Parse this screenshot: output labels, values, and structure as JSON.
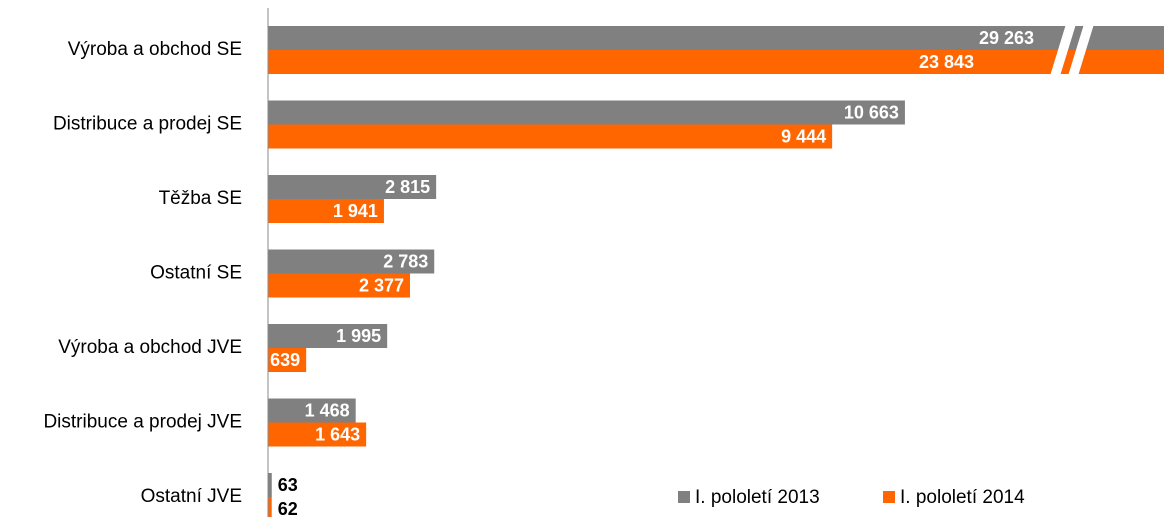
{
  "chart_data": {
    "type": "barh",
    "categories": [
      "Výroba a obchod SE",
      "Distribuce a prodej SE",
      "Těžba SE",
      "Ostatní SE",
      "Výroba a obchod JVE",
      "Distribuce a prodej JVE",
      "Ostatní JVE"
    ],
    "series": [
      {
        "name": "I. pololetí 2013",
        "color": "#808080",
        "values": [
          29263,
          10663,
          2815,
          2783,
          1995,
          1468,
          63
        ],
        "value_labels": [
          "29 263",
          "10 663",
          "2 815",
          "2 783",
          "1 995",
          "1 468",
          "63"
        ]
      },
      {
        "name": "I. pololetí 2014",
        "color": "#ff6600",
        "values": [
          23843,
          9444,
          1941,
          2377,
          639,
          1643,
          62
        ],
        "value_labels": [
          "23 843",
          "9 444",
          "1 941",
          "2 377",
          "639",
          "1 643",
          "62"
        ]
      }
    ],
    "xlim": [
      0,
      15000
    ]
  }
}
